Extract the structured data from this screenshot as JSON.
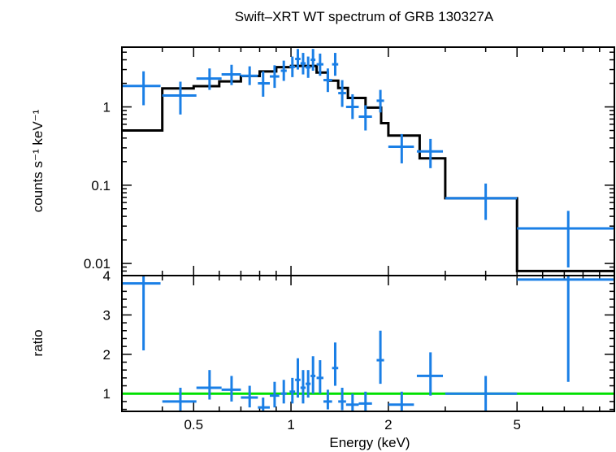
{
  "chart_data": [
    {
      "type": "step+errorbar",
      "title": "Swift–XRT WT spectrum of GRB 130327A",
      "ylabel": "counts s⁻¹ keV⁻¹",
      "xscale": "log",
      "yscale": "log",
      "xlim": [
        0.3,
        10
      ],
      "ylim": [
        0.007,
        5.8
      ],
      "yticks": [
        0.01,
        0.1,
        1
      ],
      "ytick_labels": [
        "0.01",
        "0.1",
        "1"
      ],
      "colors": {
        "data": "#1a7fe6",
        "model": "#000000"
      },
      "model": {
        "edges": [
          0.3,
          0.4,
          0.5,
          0.6,
          0.7,
          0.8,
          0.9,
          1.0,
          1.2,
          1.3,
          1.4,
          1.5,
          1.7,
          1.9,
          2.0,
          2.5,
          3.0,
          5.0,
          10.0
        ],
        "values": [
          0.5,
          1.72,
          1.84,
          2.12,
          2.48,
          2.84,
          3.22,
          3.34,
          2.75,
          2.16,
          1.74,
          1.3,
          0.98,
          0.62,
          0.43,
          0.22,
          0.068,
          0.008
        ]
      },
      "points": [
        {
          "x": 0.35,
          "xlo": 0.3,
          "xhi": 0.395,
          "y": 1.85,
          "ylo": 1.05,
          "yhi": 2.85
        },
        {
          "x": 0.455,
          "xlo": 0.4,
          "xhi": 0.51,
          "y": 1.4,
          "ylo": 0.8,
          "yhi": 2.1
        },
        {
          "x": 0.56,
          "xlo": 0.51,
          "xhi": 0.61,
          "y": 2.3,
          "ylo": 1.65,
          "yhi": 3.1
        },
        {
          "x": 0.655,
          "xlo": 0.61,
          "xhi": 0.7,
          "y": 2.6,
          "ylo": 1.9,
          "yhi": 3.45
        },
        {
          "x": 0.745,
          "xlo": 0.7,
          "xhi": 0.79,
          "y": 2.5,
          "ylo": 1.9,
          "yhi": 3.3
        },
        {
          "x": 0.82,
          "xlo": 0.79,
          "xhi": 0.86,
          "y": 2.0,
          "ylo": 1.35,
          "yhi": 2.85
        },
        {
          "x": 0.89,
          "xlo": 0.86,
          "xhi": 0.92,
          "y": 2.45,
          "ylo": 1.75,
          "yhi": 3.4
        },
        {
          "x": 0.95,
          "xlo": 0.93,
          "xhi": 0.97,
          "y": 2.9,
          "ylo": 2.15,
          "yhi": 3.9
        },
        {
          "x": 1.01,
          "xlo": 0.99,
          "xhi": 1.03,
          "y": 3.25,
          "ylo": 2.4,
          "yhi": 4.4
        },
        {
          "x": 1.05,
          "xlo": 1.03,
          "xhi": 1.07,
          "y": 4.1,
          "ylo": 3.0,
          "yhi": 5.5
        },
        {
          "x": 1.09,
          "xlo": 1.07,
          "xhi": 1.11,
          "y": 3.6,
          "ylo": 2.6,
          "yhi": 4.9
        },
        {
          "x": 1.13,
          "xlo": 1.11,
          "xhi": 1.15,
          "y": 3.2,
          "ylo": 2.35,
          "yhi": 4.4
        },
        {
          "x": 1.17,
          "xlo": 1.15,
          "xhi": 1.19,
          "y": 4.0,
          "ylo": 2.9,
          "yhi": 5.5
        },
        {
          "x": 1.23,
          "xlo": 1.2,
          "xhi": 1.26,
          "y": 3.5,
          "ylo": 2.5,
          "yhi": 4.8
        },
        {
          "x": 1.3,
          "xlo": 1.26,
          "xhi": 1.34,
          "y": 2.2,
          "ylo": 1.55,
          "yhi": 3.1
        },
        {
          "x": 1.37,
          "xlo": 1.34,
          "xhi": 1.4,
          "y": 3.5,
          "ylo": 2.5,
          "yhi": 4.9
        },
        {
          "x": 1.44,
          "xlo": 1.4,
          "xhi": 1.48,
          "y": 1.5,
          "ylo": 1.0,
          "yhi": 2.2
        },
        {
          "x": 1.55,
          "xlo": 1.48,
          "xhi": 1.62,
          "y": 1.0,
          "ylo": 0.7,
          "yhi": 1.45
        },
        {
          "x": 1.7,
          "xlo": 1.62,
          "xhi": 1.78,
          "y": 0.75,
          "ylo": 0.5,
          "yhi": 1.05
        },
        {
          "x": 1.89,
          "xlo": 1.84,
          "xhi": 1.94,
          "y": 1.2,
          "ylo": 0.85,
          "yhi": 1.65
        },
        {
          "x": 2.2,
          "xlo": 2.0,
          "xhi": 2.4,
          "y": 0.31,
          "ylo": 0.19,
          "yhi": 0.45
        },
        {
          "x": 2.7,
          "xlo": 2.45,
          "xhi": 2.95,
          "y": 0.27,
          "ylo": 0.165,
          "yhi": 0.39
        },
        {
          "x": 4.0,
          "xlo": 3.0,
          "xhi": 5.0,
          "y": 0.068,
          "ylo": 0.036,
          "yhi": 0.105
        },
        {
          "x": 7.2,
          "xlo": 5.0,
          "xhi": 10.0,
          "y": 0.028,
          "ylo": 0.0089,
          "yhi": 0.047
        }
      ]
    },
    {
      "type": "errorbar",
      "ylabel": "ratio",
      "xlabel": "Energy (keV)",
      "xscale": "log",
      "yscale": "linear",
      "xlim": [
        0.3,
        10
      ],
      "ylim": [
        0.55,
        4.0
      ],
      "yticks": [
        1,
        2,
        3,
        4
      ],
      "ytick_labels": [
        "1",
        "2",
        "3",
        "4"
      ],
      "xticks": [
        0.5,
        1,
        2,
        5
      ],
      "xtick_labels": [
        "0.5",
        "1",
        "2",
        "5"
      ],
      "reference_line": 1.0,
      "colors": {
        "data": "#1a7fe6",
        "reference": "#00e000"
      },
      "points": [
        {
          "x": 0.35,
          "xlo": 0.3,
          "xhi": 0.395,
          "y": 3.8,
          "ylo": 2.1,
          "yhi": 4.0
        },
        {
          "x": 0.455,
          "xlo": 0.4,
          "xhi": 0.51,
          "y": 0.8,
          "ylo": 0.55,
          "yhi": 1.15
        },
        {
          "x": 0.56,
          "xlo": 0.51,
          "xhi": 0.61,
          "y": 1.15,
          "ylo": 0.85,
          "yhi": 1.6
        },
        {
          "x": 0.655,
          "xlo": 0.61,
          "xhi": 0.7,
          "y": 1.1,
          "ylo": 0.8,
          "yhi": 1.45
        },
        {
          "x": 0.745,
          "xlo": 0.7,
          "xhi": 0.79,
          "y": 0.9,
          "ylo": 0.65,
          "yhi": 1.2
        },
        {
          "x": 0.82,
          "xlo": 0.79,
          "xhi": 0.86,
          "y": 0.65,
          "ylo": 0.55,
          "yhi": 0.9
        },
        {
          "x": 0.89,
          "xlo": 0.86,
          "xhi": 0.92,
          "y": 0.95,
          "ylo": 0.65,
          "yhi": 1.3
        },
        {
          "x": 0.95,
          "xlo": 0.93,
          "xhi": 0.97,
          "y": 1.0,
          "ylo": 0.75,
          "yhi": 1.35
        },
        {
          "x": 1.01,
          "xlo": 0.99,
          "xhi": 1.03,
          "y": 1.05,
          "ylo": 0.75,
          "yhi": 1.4
        },
        {
          "x": 1.05,
          "xlo": 1.03,
          "xhi": 1.07,
          "y": 1.35,
          "ylo": 0.9,
          "yhi": 1.9
        },
        {
          "x": 1.09,
          "xlo": 1.07,
          "xhi": 1.11,
          "y": 1.15,
          "ylo": 0.75,
          "yhi": 1.6
        },
        {
          "x": 1.13,
          "xlo": 1.11,
          "xhi": 1.15,
          "y": 1.25,
          "ylo": 0.9,
          "yhi": 1.6
        },
        {
          "x": 1.17,
          "xlo": 1.15,
          "xhi": 1.19,
          "y": 1.45,
          "ylo": 1.0,
          "yhi": 1.95
        },
        {
          "x": 1.23,
          "xlo": 1.2,
          "xhi": 1.26,
          "y": 1.4,
          "ylo": 1.0,
          "yhi": 1.85
        },
        {
          "x": 1.3,
          "xlo": 1.26,
          "xhi": 1.34,
          "y": 0.8,
          "ylo": 0.6,
          "yhi": 1.1
        },
        {
          "x": 1.37,
          "xlo": 1.34,
          "xhi": 1.4,
          "y": 1.65,
          "ylo": 1.2,
          "yhi": 2.3
        },
        {
          "x": 1.44,
          "xlo": 1.4,
          "xhi": 1.48,
          "y": 0.8,
          "ylo": 0.58,
          "yhi": 1.15
        },
        {
          "x": 1.55,
          "xlo": 1.48,
          "xhi": 1.62,
          "y": 0.72,
          "ylo": 0.55,
          "yhi": 1.0
        },
        {
          "x": 1.7,
          "xlo": 1.62,
          "xhi": 1.78,
          "y": 0.75,
          "ylo": 0.55,
          "yhi": 1.05
        },
        {
          "x": 1.89,
          "xlo": 1.84,
          "xhi": 1.94,
          "y": 1.85,
          "ylo": 1.25,
          "yhi": 2.6
        },
        {
          "x": 2.2,
          "xlo": 2.0,
          "xhi": 2.4,
          "y": 0.72,
          "ylo": 0.55,
          "yhi": 1.05
        },
        {
          "x": 2.7,
          "xlo": 2.45,
          "xhi": 2.95,
          "y": 1.45,
          "ylo": 0.95,
          "yhi": 2.05
        },
        {
          "x": 4.0,
          "xlo": 3.0,
          "xhi": 5.0,
          "y": 1.0,
          "ylo": 0.55,
          "yhi": 1.45
        },
        {
          "x": 7.2,
          "xlo": 5.0,
          "xhi": 10.0,
          "y": 3.9,
          "ylo": 1.3,
          "yhi": 4.0
        }
      ]
    }
  ]
}
